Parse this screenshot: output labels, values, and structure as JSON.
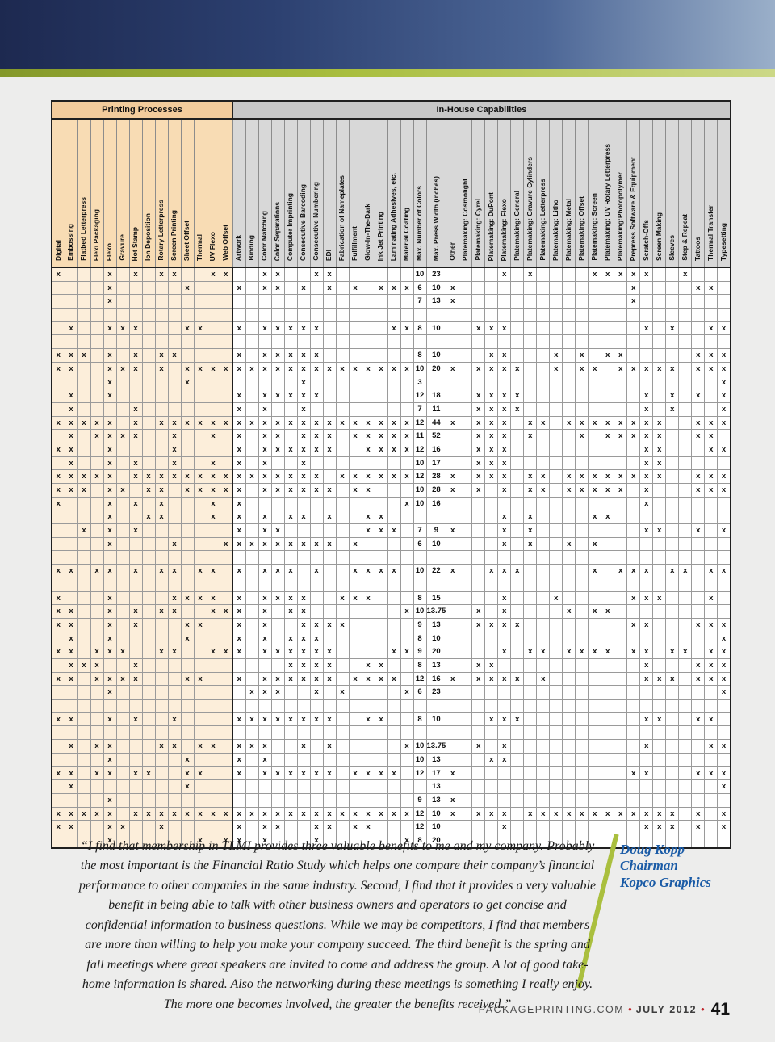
{
  "colors": {
    "banner_navy": "#1d2950",
    "accent_green": "#aabf3e",
    "attribution_blue": "#1a5ba6",
    "bullet_red": "#c0272d",
    "printing_processes_header_bg": "#f3cc9c",
    "in_house_header_bg": "#c7c7c7"
  },
  "quote": {
    "text": "“I find that membership in TLMI provides three valuable benefits to me and my company. Probably the most important is the Financial Ratio Study which helps one compare their company’s financial performance to other companies in the same industry. Second, I find that it provides a very valuable benefit in being able to talk with other business owners and operators to get concise and confidential information to business questions. While we may be competitors, I find that members are more than willing to help you make your company succeed. The third benefit is the spring and fall meetings where great speakers are invited to come and address the group. A lot of good take-home information is shared. Also the networking during these meetings is something I really enjoy. The more one becomes involved, the greater the benefits received.”"
  },
  "attribution": {
    "name": "Doug Kopp",
    "title": "Chairman",
    "company": "Kopco Graphics"
  },
  "footer": {
    "site": "PACKAGEPRINTING.COM",
    "bullet": "•",
    "date": "JULY 2012",
    "page_number": "41"
  },
  "table": {
    "mark_char": "x",
    "numeric_columns": [
      28,
      29
    ],
    "groups": [
      {
        "label": "Printing Processes",
        "span": 14
      },
      {
        "label": "In-House Capabilities",
        "span": 38
      }
    ],
    "columns": [
      "Digital",
      "Embossing",
      "Flatbed Letterpress",
      "Flexi Packaging",
      "Flexo",
      "Gravure",
      "Hot Stamp",
      "Ion Deposition",
      "Rotary Letterpress",
      "Screen Printing",
      "Sheet Offset",
      "Thermal",
      "UV Flexo",
      "Web Offset",
      "Artwork",
      "Binding",
      "Color Matching",
      "Color Separations",
      "Computer Imprinting",
      "Consecutive Barcoding",
      "Consecutive Numbering",
      "EDI",
      "Fabrication of Nameplates",
      "Fulfillment",
      "Glow-In-The-Dark",
      "Ink Jet Printing",
      "Laminating Adhesives, etc.",
      "Material Coating",
      "Max. Number of Colors",
      "Max. Press Width (inches)",
      "Other",
      "Platemaking: Cosmolight",
      "Platemaking: Cyrel",
      "Platemaking: DuPont",
      "Platemaking: Flexo",
      "Platemaking: General",
      "Platemaking: Gravure Cylinders",
      "Platemaking: Letterpress",
      "Platemaking: Litho",
      "Platemaking: Metal",
      "Platemaking: Offset",
      "Platemaking: Screen",
      "Platemaking: UV Rotary Letterpress",
      "Platemaking:Photopolymer",
      "Prepress Software & Equipment",
      "Scratch-Offs",
      "Screen Making",
      "Sleeves",
      "Step & Repeat",
      "Tattoos",
      "Thermal Transfer",
      "Typesetting"
    ],
    "rows": [
      {
        "m": [
          0,
          4,
          6,
          8,
          9,
          12,
          13,
          16,
          17,
          20,
          21,
          34,
          36,
          41,
          42,
          43,
          44,
          45,
          48
        ],
        "c": "10",
        "w": "23"
      },
      {
        "m": [
          4,
          10,
          14,
          16,
          17,
          19,
          21,
          23,
          25,
          26,
          27,
          30,
          44,
          49,
          50
        ],
        "c": "6",
        "w": "10"
      },
      {
        "m": [
          4,
          30,
          44
        ],
        "c": "7",
        "w": "13"
      },
      {
        "m": []
      },
      {
        "m": [
          1,
          4,
          5,
          6,
          10,
          11,
          14,
          16,
          17,
          18,
          19,
          20,
          26,
          27,
          32,
          33,
          34,
          45,
          47,
          50,
          51
        ],
        "c": "8",
        "w": "10"
      },
      {
        "m": []
      },
      {
        "m": [
          0,
          1,
          2,
          4,
          6,
          8,
          9,
          14,
          16,
          17,
          18,
          19,
          20,
          33,
          34,
          38,
          40,
          42,
          43,
          49,
          50,
          51
        ],
        "c": "8",
        "w": "10"
      },
      {
        "m": [
          0,
          1,
          4,
          5,
          6,
          8,
          10,
          11,
          12,
          13,
          14,
          15,
          16,
          17,
          18,
          19,
          20,
          21,
          22,
          23,
          24,
          25,
          26,
          27,
          30,
          32,
          33,
          34,
          35,
          38,
          40,
          41,
          43,
          44,
          45,
          46,
          47,
          49,
          50,
          51
        ],
        "c": "10",
        "w": "20"
      },
      {
        "m": [
          4,
          10,
          19,
          51
        ],
        "c": "3"
      },
      {
        "m": [
          1,
          4,
          14,
          16,
          17,
          18,
          19,
          20,
          32,
          33,
          34,
          35,
          45,
          47,
          49,
          51
        ],
        "c": "12",
        "w": "18"
      },
      {
        "m": [
          1,
          6,
          14,
          16,
          19,
          32,
          33,
          34,
          35,
          45,
          47,
          51
        ],
        "c": "7",
        "w": "11"
      },
      {
        "m": [
          0,
          1,
          2,
          3,
          4,
          6,
          8,
          9,
          10,
          11,
          12,
          13,
          14,
          15,
          16,
          17,
          18,
          19,
          20,
          21,
          22,
          23,
          24,
          25,
          26,
          27,
          30,
          32,
          33,
          34,
          36,
          37,
          39,
          40,
          41,
          42,
          43,
          44,
          45,
          46,
          49,
          50,
          51
        ],
        "c": "12",
        "w": "44"
      },
      {
        "m": [
          1,
          3,
          4,
          5,
          6,
          9,
          12,
          14,
          16,
          17,
          19,
          20,
          21,
          23,
          24,
          25,
          26,
          27,
          32,
          33,
          34,
          36,
          40,
          42,
          43,
          44,
          45,
          46,
          49,
          50
        ],
        "c": "11",
        "w": "52"
      },
      {
        "m": [
          0,
          1,
          4,
          9,
          14,
          16,
          17,
          18,
          19,
          20,
          21,
          24,
          25,
          26,
          27,
          32,
          33,
          34,
          45,
          46,
          50,
          51
        ],
        "c": "12",
        "w": "16"
      },
      {
        "m": [
          1,
          4,
          6,
          9,
          12,
          14,
          16,
          19,
          32,
          33,
          34,
          45,
          46
        ],
        "c": "10",
        "w": "17"
      },
      {
        "m": [
          0,
          1,
          2,
          3,
          4,
          6,
          7,
          8,
          9,
          10,
          11,
          12,
          13,
          14,
          15,
          16,
          17,
          18,
          19,
          20,
          22,
          23,
          24,
          25,
          26,
          27,
          30,
          32,
          33,
          34,
          36,
          37,
          39,
          40,
          41,
          42,
          43,
          44,
          45,
          46,
          49,
          50,
          51
        ],
        "c": "12",
        "w": "28"
      },
      {
        "m": [
          0,
          1,
          2,
          4,
          5,
          7,
          8,
          10,
          11,
          12,
          13,
          14,
          16,
          17,
          18,
          19,
          20,
          21,
          23,
          24,
          30,
          32,
          34,
          36,
          37,
          39,
          40,
          41,
          42,
          43,
          45,
          49,
          50,
          51
        ],
        "c": "10",
        "w": "28"
      },
      {
        "m": [
          0,
          4,
          6,
          8,
          12,
          14,
          27,
          45
        ],
        "c": "10",
        "w": "16"
      },
      {
        "m": [
          4,
          7,
          8,
          12,
          14,
          16,
          18,
          19,
          21,
          24,
          25,
          34,
          36,
          41,
          42
        ]
      },
      {
        "m": [
          2,
          4,
          6,
          14,
          16,
          17,
          24,
          25,
          26,
          30,
          34,
          36,
          45,
          46,
          49,
          51
        ],
        "c": "7",
        "w": "9"
      },
      {
        "m": [
          4,
          9,
          13,
          14,
          15,
          16,
          17,
          18,
          19,
          20,
          21,
          23,
          34,
          36,
          39,
          41
        ],
        "c": "6",
        "w": "10"
      },
      {
        "m": []
      },
      {
        "m": [
          0,
          1,
          3,
          4,
          6,
          8,
          9,
          11,
          12,
          14,
          16,
          17,
          18,
          20,
          23,
          24,
          25,
          26,
          30,
          33,
          34,
          35,
          41,
          43,
          44,
          45,
          47,
          48,
          50,
          51
        ],
        "c": "10",
        "w": "22"
      },
      {
        "m": []
      },
      {
        "m": [
          0,
          4,
          9,
          10,
          11,
          12,
          14,
          16,
          17,
          18,
          19,
          22,
          23,
          24,
          34,
          38,
          44,
          45,
          46,
          50
        ],
        "c": "8",
        "w": "15"
      },
      {
        "m": [
          0,
          1,
          4,
          6,
          8,
          9,
          12,
          13,
          14,
          16,
          18,
          19,
          27,
          32,
          34,
          39,
          41,
          42
        ],
        "c": "10",
        "w": "13.75"
      },
      {
        "m": [
          0,
          1,
          4,
          6,
          10,
          11,
          14,
          16,
          19,
          20,
          21,
          22,
          32,
          33,
          34,
          35,
          44,
          45,
          49,
          50,
          51
        ],
        "c": "9",
        "w": "13"
      },
      {
        "m": [
          1,
          4,
          10,
          14,
          16,
          18,
          19,
          20,
          51
        ],
        "c": "8",
        "w": "10"
      },
      {
        "m": [
          0,
          1,
          3,
          4,
          5,
          8,
          9,
          12,
          13,
          14,
          16,
          17,
          18,
          19,
          20,
          21,
          26,
          27,
          34,
          36,
          37,
          39,
          40,
          41,
          42,
          44,
          45,
          47,
          48,
          50,
          51
        ],
        "c": "9",
        "w": "20"
      },
      {
        "m": [
          1,
          2,
          3,
          6,
          18,
          19,
          20,
          21,
          24,
          25,
          32,
          33,
          45,
          49,
          50,
          51
        ],
        "c": "8",
        "w": "13"
      },
      {
        "m": [
          0,
          1,
          3,
          4,
          5,
          6,
          10,
          11,
          14,
          16,
          17,
          18,
          19,
          20,
          21,
          23,
          24,
          25,
          26,
          30,
          32,
          33,
          34,
          35,
          37,
          45,
          46,
          47,
          49,
          50,
          51
        ],
        "c": "12",
        "w": "16"
      },
      {
        "m": [
          4,
          15,
          16,
          17,
          20,
          22,
          27,
          51
        ],
        "c": "6",
        "w": "23"
      },
      {
        "m": []
      },
      {
        "m": [
          0,
          1,
          4,
          6,
          9,
          14,
          15,
          16,
          17,
          18,
          19,
          20,
          21,
          24,
          25,
          33,
          34,
          35,
          45,
          46,
          49,
          50
        ],
        "c": "8",
        "w": "10"
      },
      {
        "m": []
      },
      {
        "m": [
          1,
          3,
          4,
          8,
          9,
          11,
          12,
          14,
          15,
          16,
          19,
          21,
          27,
          32,
          34,
          45,
          50,
          51
        ],
        "c": "10",
        "w": "13.75"
      },
      {
        "m": [
          4,
          10,
          14,
          16,
          33,
          34
        ],
        "c": "10",
        "w": "13"
      },
      {
        "m": [
          0,
          1,
          3,
          4,
          6,
          7,
          10,
          11,
          14,
          16,
          17,
          18,
          19,
          20,
          21,
          23,
          24,
          25,
          26,
          30,
          44,
          45,
          49,
          50,
          51
        ],
        "c": "12",
        "w": "17"
      },
      {
        "m": [
          1,
          10,
          51
        ],
        "w": "13"
      },
      {
        "m": [
          4,
          30
        ],
        "c": "9",
        "w": "13"
      },
      {
        "m": [
          0,
          1,
          2,
          3,
          4,
          6,
          7,
          8,
          9,
          10,
          11,
          12,
          13,
          14,
          15,
          16,
          17,
          18,
          19,
          20,
          21,
          22,
          23,
          24,
          25,
          26,
          27,
          30,
          32,
          33,
          34,
          36,
          37,
          38,
          39,
          40,
          41,
          42,
          43,
          44,
          45,
          46,
          47,
          49,
          51
        ],
        "c": "12",
        "w": "10"
      },
      {
        "m": [
          0,
          1,
          4,
          5,
          8,
          14,
          16,
          17,
          20,
          21,
          23,
          24,
          34,
          45,
          46,
          47,
          49,
          51
        ],
        "c": "12",
        "w": "10"
      },
      {
        "m": [
          4,
          11,
          13,
          14,
          16,
          20,
          27
        ],
        "c": "8",
        "w": "20"
      }
    ]
  }
}
